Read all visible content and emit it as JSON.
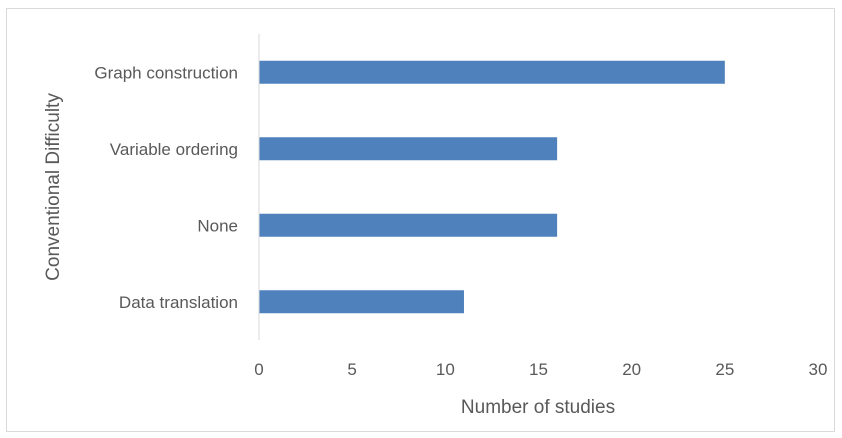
{
  "chart_data": {
    "type": "bar",
    "orientation": "horizontal",
    "categories": [
      "Graph construction",
      "Variable ordering",
      "None",
      "Data translation"
    ],
    "values": [
      25,
      16,
      16,
      11
    ],
    "title": "",
    "xlabel": "Number of studies",
    "ylabel": "Conventional Difficulty",
    "xlim": [
      0,
      30
    ],
    "xticks": [
      0,
      5,
      10,
      15,
      20,
      25,
      30
    ],
    "grid": false,
    "legend": "none",
    "bar_color": "#4f81bd",
    "axis_color": "#d9d9d9",
    "text_color": "#595959"
  }
}
